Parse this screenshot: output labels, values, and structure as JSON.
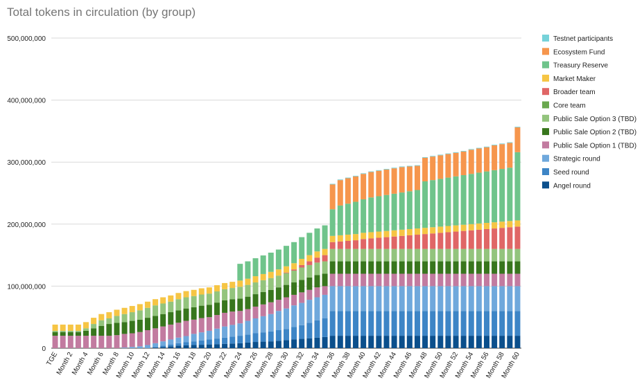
{
  "chart_data": {
    "type": "bar",
    "stacked": true,
    "title": "Total tokens in circulation (by group)",
    "xlabel": "",
    "ylabel": "",
    "ylim": [
      0,
      500000000
    ],
    "y_ticks": [
      "0",
      "100,000,000",
      "200,000,000",
      "300,000,000",
      "400,000,000",
      "500,000,000"
    ],
    "y_tick_values": [
      0,
      100000000,
      200000000,
      300000000,
      400000000,
      500000000
    ],
    "grid": true,
    "legend_position": "right",
    "categories": [
      "TGE",
      "Month 1",
      "Month 2",
      "Month 3",
      "Month 4",
      "Month 5",
      "Month 6",
      "Month 7",
      "Month 8",
      "Month 9",
      "Month 10",
      "Month 11",
      "Month 12",
      "Month 13",
      "Month 14",
      "Month 15",
      "Month 16",
      "Month 17",
      "Month 18",
      "Month 19",
      "Month 20",
      "Month 21",
      "Month 22",
      "Month 23",
      "Month 24",
      "Month 25",
      "Month 26",
      "Month 27",
      "Month 28",
      "Month 29",
      "Month 30",
      "Month 31",
      "Month 32",
      "Month 33",
      "Month 34",
      "Month 35",
      "Month 36",
      "Month 37",
      "Month 38",
      "Month 39",
      "Month 40",
      "Month 41",
      "Month 42",
      "Month 43",
      "Month 44",
      "Month 45",
      "Month 46",
      "Month 47",
      "Month 48",
      "Month 49",
      "Month 50",
      "Month 51",
      "Month 52",
      "Month 53",
      "Month 54",
      "Month 55",
      "Month 56",
      "Month 57",
      "Month 58",
      "Month 59",
      "Month 60"
    ],
    "x_tick_labels": [
      "TGE",
      "Month 2",
      "Month 4",
      "Month 6",
      "Month 8",
      "Month 10",
      "Month 12",
      "Month 14",
      "Month 16",
      "Month 18",
      "Month 20",
      "Month 22",
      "Month 24",
      "Month 26",
      "Month 28",
      "Month 30",
      "Month 32",
      "Month 34",
      "Month 36",
      "Month 38",
      "Month 40",
      "Month 42",
      "Month 44",
      "Month 46",
      "Month 48",
      "Month 50",
      "Month 52",
      "Month 54",
      "Month 56",
      "Month 58",
      "Month 60"
    ],
    "series": [
      {
        "name": "Angel round",
        "color": "#0b4f8c",
        "values": [
          0,
          0,
          0,
          0,
          0,
          0,
          0,
          0,
          0,
          0,
          0,
          0,
          0,
          1000000,
          2000000,
          3000000,
          4000000,
          4500000,
          5000000,
          5500000,
          6000000,
          6500000,
          7000000,
          7500000,
          8000000,
          9000000,
          10000000,
          10500000,
          11000000,
          12000000,
          13000000,
          14000000,
          15000000,
          16000000,
          17000000,
          18000000,
          20000000,
          20000000,
          20000000,
          20000000,
          20000000,
          20000000,
          20000000,
          20000000,
          20000000,
          20000000,
          20000000,
          20000000,
          20000000,
          20000000,
          20000000,
          20000000,
          20000000,
          20000000,
          20000000,
          20000000,
          20000000,
          20000000,
          20000000,
          20000000,
          20000000
        ]
      },
      {
        "name": "Seed round",
        "color": "#3d85c6",
        "values": [
          0,
          0,
          0,
          0,
          0,
          0,
          0,
          0,
          0,
          0,
          0,
          0,
          0,
          1000000,
          2000000,
          3000000,
          4000000,
          5000000,
          6000000,
          7000000,
          8000000,
          9000000,
          10000000,
          11000000,
          12000000,
          13000000,
          14000000,
          15000000,
          16000000,
          17000000,
          18000000,
          20000000,
          22000000,
          25000000,
          28000000,
          30000000,
          40000000,
          40000000,
          40000000,
          40000000,
          40000000,
          40000000,
          40000000,
          40000000,
          40000000,
          40000000,
          40000000,
          40000000,
          40000000,
          40000000,
          40000000,
          40000000,
          40000000,
          40000000,
          40000000,
          40000000,
          40000000,
          40000000,
          40000000,
          40000000,
          40000000
        ]
      },
      {
        "name": "Strategic round",
        "color": "#6fa8dc",
        "values": [
          0,
          0,
          0,
          0,
          0,
          0,
          0,
          0,
          0,
          1000000,
          2000000,
          3000000,
          5000000,
          6000000,
          7000000,
          8000000,
          9000000,
          10000000,
          12000000,
          13000000,
          14000000,
          16000000,
          18000000,
          19000000,
          20000000,
          22000000,
          24000000,
          26000000,
          28000000,
          31000000,
          33000000,
          35000000,
          36000000,
          37000000,
          37000000,
          38000000,
          40000000,
          40000000,
          40000000,
          40000000,
          40000000,
          40000000,
          40000000,
          40000000,
          40000000,
          40000000,
          40000000,
          40000000,
          40000000,
          40000000,
          40000000,
          40000000,
          40000000,
          40000000,
          40000000,
          40000000,
          40000000,
          40000000,
          40000000,
          40000000,
          40000000
        ]
      },
      {
        "name": "Public Sale Option 1 (TBD)",
        "color": "#c27ba0",
        "values": [
          20000000,
          20000000,
          20000000,
          20000000,
          20000000,
          20000000,
          20000000,
          20000000,
          21000000,
          22000000,
          22000000,
          23000000,
          24000000,
          24000000,
          24000000,
          24000000,
          24000000,
          24500000,
          23000000,
          23000000,
          22000000,
          22000000,
          22000000,
          21500000,
          20000000,
          19000000,
          19000000,
          19000000,
          19000000,
          18000000,
          18000000,
          17000000,
          17000000,
          16000000,
          16000000,
          14000000,
          20000000,
          20000000,
          20000000,
          20000000,
          20000000,
          20000000,
          20000000,
          20000000,
          20000000,
          20000000,
          20000000,
          20000000,
          20000000,
          20000000,
          20000000,
          20000000,
          20000000,
          20000000,
          20000000,
          20000000,
          20000000,
          20000000,
          20000000,
          20000000,
          20000000
        ]
      },
      {
        "name": "Public Sale Option 2 (TBD)",
        "color": "#38761d",
        "values": [
          6000000,
          6000000,
          6000000,
          6000000,
          8000000,
          12000000,
          16000000,
          19000000,
          20000000,
          19000000,
          20000000,
          20000000,
          20000000,
          20000000,
          20000000,
          20000000,
          20000000,
          20000000,
          20000000,
          20000000,
          20000000,
          20000000,
          20000000,
          20000000,
          20000000,
          20000000,
          20000000,
          20000000,
          20000000,
          20000000,
          20000000,
          20000000,
          20000000,
          20000000,
          20000000,
          20000000,
          20000000,
          20000000,
          20000000,
          20000000,
          20000000,
          20000000,
          20000000,
          20000000,
          20000000,
          20000000,
          20000000,
          20000000,
          20000000,
          20000000,
          20000000,
          20000000,
          20000000,
          20000000,
          20000000,
          20000000,
          20000000,
          20000000,
          20000000,
          20000000,
          20000000
        ]
      },
      {
        "name": "Public Sale Option 3 (TBD)",
        "color": "#93c47d",
        "values": [
          2000000,
          2000000,
          2000000,
          2000000,
          4000000,
          7000000,
          9000000,
          9000000,
          11000000,
          13000000,
          14000000,
          15000000,
          16000000,
          17000000,
          17000000,
          17000000,
          18000000,
          18000000,
          18000000,
          18000000,
          18000000,
          18000000,
          18000000,
          18000000,
          19000000,
          19000000,
          19000000,
          19000000,
          19000000,
          19000000,
          19000000,
          19000000,
          20000000,
          20000000,
          20000000,
          20000000,
          20000000,
          20000000,
          20000000,
          20000000,
          20000000,
          20000000,
          20000000,
          20000000,
          20000000,
          20000000,
          20000000,
          20000000,
          20000000,
          20000000,
          20000000,
          20000000,
          20000000,
          20000000,
          20000000,
          20000000,
          20000000,
          20000000,
          20000000,
          20000000,
          20000000
        ]
      },
      {
        "name": "Core team",
        "color": "#6aa84f",
        "values": [
          0,
          0,
          0,
          0,
          0,
          0,
          0,
          0,
          0,
          0,
          0,
          0,
          0,
          0,
          0,
          0,
          0,
          0,
          0,
          0,
          0,
          0,
          0,
          0,
          0,
          0,
          0,
          0,
          0,
          0,
          0,
          0,
          0,
          0,
          0,
          0,
          0,
          0,
          0,
          0,
          0,
          0,
          0,
          0,
          0,
          0,
          0,
          0,
          0,
          0,
          0,
          0,
          0,
          0,
          0,
          0,
          0,
          0,
          0,
          0,
          0
        ]
      },
      {
        "name": "Broader team",
        "color": "#e06666",
        "values": [
          0,
          0,
          0,
          0,
          0,
          0,
          0,
          0,
          0,
          0,
          0,
          0,
          0,
          0,
          0,
          0,
          0,
          0,
          0,
          0,
          0,
          0,
          0,
          0,
          0,
          0,
          0,
          0,
          0,
          0,
          1000000,
          2000000,
          4000000,
          6000000,
          8000000,
          10000000,
          11000000,
          12000000,
          13000000,
          14000000,
          16000000,
          17000000,
          18000000,
          19000000,
          20000000,
          21000000,
          22000000,
          23000000,
          24000000,
          25000000,
          26000000,
          27000000,
          28000000,
          29000000,
          30000000,
          31000000,
          32000000,
          33000000,
          34000000,
          35000000,
          36000000
        ]
      },
      {
        "name": "Market Maker",
        "color": "#f6c544",
        "values": [
          10000000,
          10000000,
          10000000,
          10000000,
          10000000,
          10000000,
          10000000,
          10000000,
          10000000,
          10000000,
          10000000,
          10000000,
          10000000,
          10000000,
          10000000,
          10000000,
          10000000,
          10000000,
          10000000,
          10000000,
          10000000,
          10000000,
          10000000,
          10000000,
          10000000,
          10000000,
          10000000,
          10000000,
          10000000,
          10000000,
          10000000,
          10000000,
          10000000,
          10000000,
          10000000,
          10000000,
          10000000,
          10000000,
          10000000,
          10000000,
          10000000,
          10000000,
          10000000,
          10000000,
          10000000,
          10000000,
          10000000,
          10000000,
          10000000,
          10000000,
          10000000,
          10000000,
          10000000,
          10000000,
          10000000,
          10000000,
          10000000,
          10000000,
          10000000,
          10000000,
          10000000
        ]
      },
      {
        "name": "Treasury Reserve",
        "color": "#6fc48b",
        "values": [
          0,
          0,
          0,
          0,
          0,
          0,
          0,
          0,
          0,
          0,
          0,
          0,
          0,
          0,
          0,
          0,
          0,
          0,
          0,
          0,
          0,
          0,
          0,
          0,
          27000000,
          28000000,
          29000000,
          30000000,
          31000000,
          32000000,
          33000000,
          34000000,
          35000000,
          36000000,
          37000000,
          38000000,
          43000000,
          48000000,
          50000000,
          52000000,
          54000000,
          56000000,
          57000000,
          58000000,
          59000000,
          60000000,
          61000000,
          62000000,
          75000000,
          76000000,
          77000000,
          78000000,
          79000000,
          80000000,
          81000000,
          82000000,
          83000000,
          84000000,
          85000000,
          86000000,
          110000000
        ]
      },
      {
        "name": "Ecosystem Fund",
        "color": "#f6964d",
        "values": [
          0,
          0,
          0,
          0,
          0,
          0,
          0,
          0,
          0,
          0,
          0,
          0,
          0,
          0,
          0,
          0,
          0,
          0,
          0,
          0,
          0,
          0,
          0,
          0,
          0,
          0,
          0,
          0,
          0,
          0,
          0,
          0,
          0,
          0,
          0,
          0,
          40000000,
          41000000,
          41000000,
          41000000,
          41000000,
          41000000,
          41000000,
          41000000,
          41000000,
          41000000,
          40000000,
          39000000,
          38000000,
          38000000,
          38000000,
          38000000,
          38000000,
          38000000,
          39000000,
          39000000,
          39000000,
          40000000,
          40000000,
          40000000,
          40000000
        ]
      },
      {
        "name": "Testnet participants",
        "color": "#76d2d9",
        "values": [
          0,
          0,
          0,
          0,
          0,
          0,
          0,
          0,
          0,
          0,
          0,
          0,
          0,
          0,
          0,
          0,
          0,
          0,
          0,
          0,
          0,
          0,
          0,
          0,
          0,
          0,
          0,
          0,
          0,
          0,
          0,
          0,
          0,
          0,
          0,
          0,
          1000000,
          1000000,
          1000000,
          1000000,
          1000000,
          1000000,
          1000000,
          1000000,
          1000000,
          1000000,
          1000000,
          1000000,
          1000000,
          1000000,
          1000000,
          1000000,
          1000000,
          1000000,
          1000000,
          1000000,
          1000000,
          1000000,
          1000000,
          1000000,
          1000000
        ]
      }
    ],
    "legend_order": [
      "Testnet participants",
      "Ecosystem Fund",
      "Treasury Reserve",
      "Market Maker",
      "Broader team",
      "Core team",
      "Public Sale Option 3 (TBD)",
      "Public Sale Option 2 (TBD)",
      "Public Sale Option 1 (TBD)",
      "Strategic round",
      "Seed round",
      "Angel round"
    ]
  }
}
